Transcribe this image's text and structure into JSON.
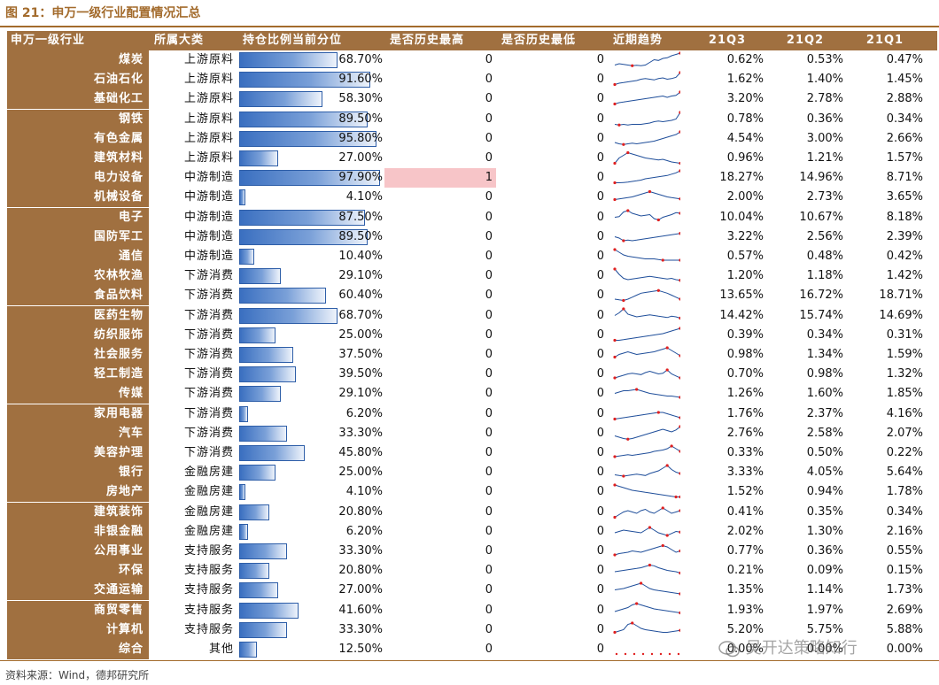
{
  "figure_title": "图 21：申万一级行业配置情况汇总",
  "source_note": "资料来源：Wind，德邦研究所",
  "watermark": "吴开达策略知行",
  "colors": {
    "header_bg": "#a07040",
    "bar": "#3a6fc0",
    "highlight": "#f7c5c8",
    "trend_line": "#1f4e9a",
    "trend_marker": "#e02020"
  },
  "chart_data": {
    "type": "table",
    "columns": [
      "申万一级行业",
      "所属大类",
      "持仓比例当前分位",
      "是否历史最高",
      "是否历史最低",
      "近期趋势",
      "21Q3",
      "21Q2",
      "21Q1"
    ],
    "rows": [
      {
        "industry": "煤炭",
        "category": "上游原料",
        "percentile": "68.70%",
        "pct": 68.7,
        "is_high": 0,
        "is_low": 0,
        "q3": "0.62%",
        "q2": "0.53%",
        "q1": "0.47%"
      },
      {
        "industry": "石油石化",
        "category": "上游原料",
        "percentile": "91.60%",
        "pct": 91.6,
        "is_high": 0,
        "is_low": 0,
        "q3": "1.62%",
        "q2": "1.40%",
        "q1": "1.45%"
      },
      {
        "industry": "基础化工",
        "category": "上游原料",
        "percentile": "58.30%",
        "pct": 58.3,
        "is_high": 0,
        "is_low": 0,
        "q3": "3.20%",
        "q2": "2.78%",
        "q1": "2.88%"
      },
      {
        "industry": "钢铁",
        "category": "上游原料",
        "percentile": "89.50%",
        "pct": 89.5,
        "is_high": 0,
        "is_low": 0,
        "q3": "0.78%",
        "q2": "0.36%",
        "q1": "0.34%"
      },
      {
        "industry": "有色金属",
        "category": "上游原料",
        "percentile": "95.80%",
        "pct": 95.8,
        "is_high": 0,
        "is_low": 0,
        "q3": "4.54%",
        "q2": "3.00%",
        "q1": "2.66%"
      },
      {
        "industry": "建筑材料",
        "category": "上游原料",
        "percentile": "27.00%",
        "pct": 27.0,
        "is_high": 0,
        "is_low": 0,
        "q3": "0.96%",
        "q2": "1.21%",
        "q1": "1.57%"
      },
      {
        "industry": "电力设备",
        "category": "中游制造",
        "percentile": "97.90%",
        "pct": 97.9,
        "is_high": 1,
        "is_low": 0,
        "q3": "18.27%",
        "q2": "14.96%",
        "q1": "8.71%"
      },
      {
        "industry": "机械设备",
        "category": "中游制造",
        "percentile": "4.10%",
        "pct": 4.1,
        "is_high": 0,
        "is_low": 0,
        "q3": "2.00%",
        "q2": "2.73%",
        "q1": "3.65%"
      },
      {
        "industry": "电子",
        "category": "中游制造",
        "percentile": "87.50%",
        "pct": 87.5,
        "is_high": 0,
        "is_low": 0,
        "q3": "10.04%",
        "q2": "10.67%",
        "q1": "8.18%"
      },
      {
        "industry": "国防军工",
        "category": "中游制造",
        "percentile": "89.50%",
        "pct": 89.5,
        "is_high": 0,
        "is_low": 0,
        "q3": "3.22%",
        "q2": "2.56%",
        "q1": "2.39%"
      },
      {
        "industry": "通信",
        "category": "中游制造",
        "percentile": "10.40%",
        "pct": 10.4,
        "is_high": 0,
        "is_low": 0,
        "q3": "0.57%",
        "q2": "0.48%",
        "q1": "0.42%"
      },
      {
        "industry": "农林牧渔",
        "category": "下游消费",
        "percentile": "29.10%",
        "pct": 29.1,
        "is_high": 0,
        "is_low": 0,
        "q3": "1.20%",
        "q2": "1.18%",
        "q1": "1.42%"
      },
      {
        "industry": "食品饮料",
        "category": "下游消费",
        "percentile": "60.40%",
        "pct": 60.4,
        "is_high": 0,
        "is_low": 0,
        "q3": "13.65%",
        "q2": "16.72%",
        "q1": "18.71%"
      },
      {
        "industry": "医药生物",
        "category": "下游消费",
        "percentile": "68.70%",
        "pct": 68.7,
        "is_high": 0,
        "is_low": 0,
        "q3": "14.42%",
        "q2": "15.74%",
        "q1": "14.69%"
      },
      {
        "industry": "纺织服饰",
        "category": "下游消费",
        "percentile": "25.00%",
        "pct": 25.0,
        "is_high": 0,
        "is_low": 0,
        "q3": "0.39%",
        "q2": "0.34%",
        "q1": "0.31%"
      },
      {
        "industry": "社会服务",
        "category": "下游消费",
        "percentile": "37.50%",
        "pct": 37.5,
        "is_high": 0,
        "is_low": 0,
        "q3": "0.98%",
        "q2": "1.34%",
        "q1": "1.59%"
      },
      {
        "industry": "轻工制造",
        "category": "下游消费",
        "percentile": "39.50%",
        "pct": 39.5,
        "is_high": 0,
        "is_low": 0,
        "q3": "0.70%",
        "q2": "0.98%",
        "q1": "1.32%"
      },
      {
        "industry": "传媒",
        "category": "下游消费",
        "percentile": "29.10%",
        "pct": 29.1,
        "is_high": 0,
        "is_low": 0,
        "q3": "1.26%",
        "q2": "1.60%",
        "q1": "1.85%"
      },
      {
        "industry": "家用电器",
        "category": "下游消费",
        "percentile": "6.20%",
        "pct": 6.2,
        "is_high": 0,
        "is_low": 0,
        "q3": "1.76%",
        "q2": "2.37%",
        "q1": "4.16%"
      },
      {
        "industry": "汽车",
        "category": "下游消费",
        "percentile": "33.30%",
        "pct": 33.3,
        "is_high": 0,
        "is_low": 0,
        "q3": "2.76%",
        "q2": "2.58%",
        "q1": "2.07%"
      },
      {
        "industry": "美容护理",
        "category": "下游消费",
        "percentile": "45.80%",
        "pct": 45.8,
        "is_high": 0,
        "is_low": 0,
        "q3": "0.33%",
        "q2": "0.50%",
        "q1": "0.22%"
      },
      {
        "industry": "银行",
        "category": "金融房建",
        "percentile": "25.00%",
        "pct": 25.0,
        "is_high": 0,
        "is_low": 0,
        "q3": "3.33%",
        "q2": "4.05%",
        "q1": "5.64%"
      },
      {
        "industry": "房地产",
        "category": "金融房建",
        "percentile": "4.10%",
        "pct": 4.1,
        "is_high": 0,
        "is_low": 0,
        "q3": "1.52%",
        "q2": "0.94%",
        "q1": "1.78%"
      },
      {
        "industry": "建筑装饰",
        "category": "金融房建",
        "percentile": "20.80%",
        "pct": 20.8,
        "is_high": 0,
        "is_low": 0,
        "q3": "0.41%",
        "q2": "0.35%",
        "q1": "0.34%"
      },
      {
        "industry": "非银金融",
        "category": "金融房建",
        "percentile": "6.20%",
        "pct": 6.2,
        "is_high": 0,
        "is_low": 0,
        "q3": "2.02%",
        "q2": "1.30%",
        "q1": "2.16%"
      },
      {
        "industry": "公用事业",
        "category": "支持服务",
        "percentile": "33.30%",
        "pct": 33.3,
        "is_high": 0,
        "is_low": 0,
        "q3": "0.77%",
        "q2": "0.36%",
        "q1": "0.55%"
      },
      {
        "industry": "环保",
        "category": "支持服务",
        "percentile": "20.80%",
        "pct": 20.8,
        "is_high": 0,
        "is_low": 0,
        "q3": "0.21%",
        "q2": "0.09%",
        "q1": "0.15%"
      },
      {
        "industry": "交通运输",
        "category": "支持服务",
        "percentile": "27.00%",
        "pct": 27.0,
        "is_high": 0,
        "is_low": 0,
        "q3": "1.35%",
        "q2": "1.14%",
        "q1": "1.73%"
      },
      {
        "industry": "商贸零售",
        "category": "支持服务",
        "percentile": "41.60%",
        "pct": 41.6,
        "is_high": 0,
        "is_low": 0,
        "q3": "1.93%",
        "q2": "1.97%",
        "q1": "2.69%"
      },
      {
        "industry": "计算机",
        "category": "支持服务",
        "percentile": "33.30%",
        "pct": 33.3,
        "is_high": 0,
        "is_low": 0,
        "q3": "5.20%",
        "q2": "5.75%",
        "q1": "5.88%"
      },
      {
        "industry": "综合",
        "category": "其他",
        "percentile": "12.50%",
        "pct": 12.5,
        "is_high": 0,
        "is_low": 0,
        "q3": "0.00%",
        "q2": "0.00%",
        "q1": "0.00%"
      }
    ],
    "trends": [
      [
        0.1,
        0.2,
        0.15,
        0.1,
        0.05,
        0.08,
        0.05,
        0.1,
        0.3,
        0.5,
        0.45,
        0.6,
        0.65,
        0.8,
        0.9,
        1.0
      ],
      [
        0.1,
        0.2,
        0.25,
        0.3,
        0.35,
        0.4,
        0.5,
        0.55,
        0.5,
        0.45,
        0.55,
        0.6,
        0.5,
        0.55,
        0.65,
        1.0
      ],
      [
        0.1,
        0.2,
        0.25,
        0.3,
        0.35,
        0.4,
        0.45,
        0.5,
        0.55,
        0.6,
        0.65,
        0.7,
        0.6,
        0.7,
        0.75,
        1.0
      ],
      [
        0.1,
        0.05,
        0.1,
        0.05,
        0.1,
        0.1,
        0.1,
        0.15,
        0.2,
        0.3,
        0.35,
        0.3,
        0.35,
        0.4,
        0.5,
        1.0
      ],
      [
        0.2,
        0.1,
        0.05,
        0.1,
        0.15,
        0.1,
        0.15,
        0.2,
        0.25,
        0.3,
        0.4,
        0.5,
        0.6,
        0.7,
        0.8,
        1.0
      ],
      [
        0.1,
        0.5,
        0.7,
        0.9,
        0.8,
        0.7,
        0.6,
        0.5,
        0.45,
        0.4,
        0.35,
        0.4,
        0.3,
        0.2,
        0.15,
        0.1
      ],
      [
        0.1,
        0.1,
        0.12,
        0.15,
        0.2,
        0.25,
        0.3,
        0.4,
        0.45,
        0.5,
        0.55,
        0.6,
        0.65,
        0.75,
        0.85,
        1.0
      ],
      [
        0.3,
        0.35,
        0.4,
        0.45,
        0.5,
        0.6,
        0.7,
        0.8,
        0.9,
        0.8,
        0.7,
        0.6,
        0.5,
        0.45,
        0.4,
        0.35
      ],
      [
        0.5,
        0.55,
        0.9,
        1.0,
        0.8,
        0.7,
        0.6,
        0.65,
        0.7,
        0.4,
        0.3,
        0.5,
        0.6,
        0.7,
        0.85,
        0.8
      ],
      [
        0.5,
        0.4,
        0.2,
        0.25,
        0.2,
        0.25,
        0.3,
        0.35,
        0.4,
        0.45,
        0.5,
        0.55,
        0.6,
        0.65,
        0.7,
        0.75
      ],
      [
        1.0,
        0.8,
        0.6,
        0.5,
        0.45,
        0.4,
        0.35,
        0.3,
        0.3,
        0.3,
        0.25,
        0.2,
        0.2,
        0.2,
        0.2,
        0.2
      ],
      [
        1.0,
        0.6,
        0.3,
        0.2,
        0.25,
        0.3,
        0.35,
        0.4,
        0.45,
        0.4,
        0.35,
        0.3,
        0.25,
        0.3,
        0.2,
        0.15
      ],
      [
        0.2,
        0.15,
        0.1,
        0.2,
        0.35,
        0.5,
        0.65,
        0.7,
        0.75,
        0.8,
        0.85,
        0.75,
        0.65,
        0.5,
        0.35,
        0.2
      ],
      [
        0.5,
        0.7,
        1.0,
        0.6,
        0.5,
        0.4,
        0.45,
        0.5,
        0.55,
        0.5,
        0.45,
        0.4,
        0.35,
        0.45,
        0.4,
        0.3
      ],
      [
        0.1,
        0.1,
        0.15,
        0.2,
        0.25,
        0.3,
        0.35,
        0.4,
        0.45,
        0.5,
        0.55,
        0.6,
        0.7,
        0.8,
        0.9,
        1.0
      ],
      [
        0.3,
        0.5,
        0.6,
        0.7,
        0.6,
        0.5,
        0.55,
        0.6,
        0.65,
        0.7,
        0.8,
        0.9,
        1.0,
        0.8,
        0.6,
        0.4
      ],
      [
        0.2,
        0.3,
        0.4,
        0.5,
        0.55,
        0.5,
        0.45,
        0.6,
        0.7,
        0.6,
        0.5,
        0.55,
        0.8,
        0.5,
        0.35,
        0.2
      ],
      [
        0.5,
        0.6,
        0.7,
        0.7,
        0.75,
        0.8,
        0.7,
        0.6,
        0.5,
        0.45,
        0.4,
        0.35,
        0.3,
        0.3,
        0.25,
        0.2
      ],
      [
        0.1,
        0.15,
        0.2,
        0.25,
        0.3,
        0.35,
        0.4,
        0.45,
        0.5,
        0.55,
        0.6,
        0.6,
        0.5,
        0.4,
        0.3,
        0.2
      ],
      [
        0.3,
        0.2,
        0.1,
        0.05,
        0.1,
        0.2,
        0.3,
        0.4,
        0.5,
        0.6,
        0.7,
        0.8,
        0.7,
        0.6,
        0.75,
        1.0
      ],
      [
        0.2,
        0.25,
        0.3,
        0.35,
        0.3,
        0.35,
        0.4,
        0.45,
        0.5,
        0.6,
        0.65,
        0.7,
        0.8,
        1.0,
        0.8,
        0.6
      ],
      [
        0.3,
        0.25,
        0.2,
        0.25,
        0.3,
        0.35,
        0.3,
        0.25,
        0.4,
        0.5,
        0.6,
        0.8,
        1.0,
        0.7,
        0.5,
        0.4
      ],
      [
        1.0,
        0.9,
        0.8,
        0.7,
        0.6,
        0.55,
        0.5,
        0.45,
        0.4,
        0.35,
        0.3,
        0.25,
        0.2,
        0.15,
        0.1,
        0.1
      ],
      [
        0.1,
        0.3,
        0.5,
        0.6,
        0.5,
        0.4,
        0.6,
        0.7,
        0.5,
        0.4,
        0.6,
        0.8,
        0.6,
        0.4,
        0.5,
        0.6
      ],
      [
        0.4,
        0.5,
        0.6,
        0.55,
        0.5,
        0.45,
        0.4,
        0.6,
        0.8,
        0.6,
        0.4,
        0.3,
        0.2,
        0.35,
        0.5,
        0.45
      ],
      [
        0.2,
        0.3,
        0.35,
        0.4,
        0.5,
        0.45,
        0.4,
        0.5,
        0.6,
        0.7,
        0.8,
        0.9,
        0.8,
        0.6,
        0.4,
        0.5
      ],
      [
        0.4,
        0.45,
        0.5,
        0.55,
        0.6,
        0.65,
        0.7,
        0.8,
        0.9,
        0.85,
        0.7,
        0.6,
        0.5,
        0.45,
        0.4,
        0.3
      ],
      [
        0.5,
        0.55,
        0.6,
        0.7,
        0.8,
        0.9,
        1.0,
        0.8,
        0.6,
        0.5,
        0.45,
        0.4,
        0.35,
        0.3,
        0.25,
        0.2
      ],
      [
        0.4,
        0.5,
        0.6,
        0.7,
        0.9,
        1.0,
        0.9,
        0.8,
        0.7,
        0.6,
        0.55,
        0.5,
        0.45,
        0.4,
        0.35,
        0.3
      ],
      [
        0.3,
        0.4,
        0.5,
        0.9,
        1.0,
        0.8,
        0.6,
        0.5,
        0.45,
        0.4,
        0.35,
        0.3,
        0.3,
        0.35,
        0.4,
        0.45
      ],
      [
        0.5,
        0.5,
        0.5,
        0.5,
        0.5,
        0.5,
        0.5,
        0.5,
        0.5,
        0.5,
        0.5,
        0.5,
        0.5,
        0.5,
        0.5,
        0.5
      ]
    ]
  }
}
